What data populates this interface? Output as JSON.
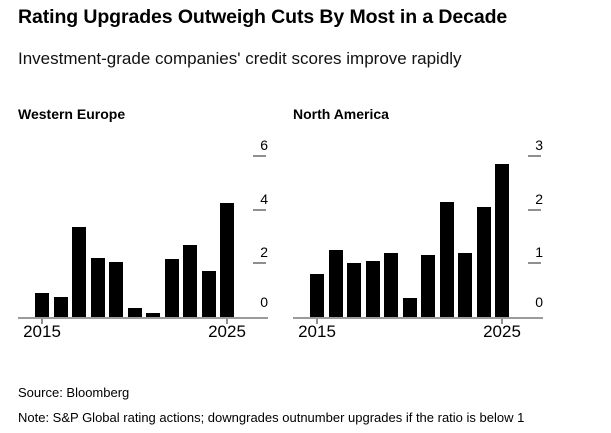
{
  "header": {
    "title": "Rating Upgrades Outweigh Cuts By Most in a Decade",
    "subtitle": "Investment-grade companies' credit scores improve rapidly"
  },
  "chart_data": [
    {
      "type": "bar",
      "title": "Western Europe",
      "x": [
        2015,
        2016,
        2017,
        2018,
        2019,
        2020,
        2021,
        2022,
        2023,
        2024,
        2025
      ],
      "values": [
        0.9,
        0.75,
        3.35,
        2.2,
        2.05,
        0.35,
        0.15,
        2.15,
        2.7,
        1.7,
        4.25
      ],
      "ylim": [
        0,
        6
      ],
      "yticks": [
        0,
        2,
        4,
        6
      ],
      "xticks": [
        2015,
        2025
      ],
      "xtick_labels": [
        "2015",
        "2025"
      ],
      "y_axis_side": "right",
      "grid": false
    },
    {
      "type": "bar",
      "title": "North America",
      "x": [
        2015,
        2016,
        2017,
        2018,
        2019,
        2020,
        2021,
        2022,
        2023,
        2024,
        2025
      ],
      "values": [
        0.8,
        1.25,
        1.0,
        1.05,
        1.2,
        0.35,
        1.15,
        2.15,
        1.2,
        2.05,
        2.85
      ],
      "ylim": [
        0,
        3
      ],
      "yticks": [
        0,
        1,
        2,
        3
      ],
      "xticks": [
        2015,
        2025
      ],
      "xtick_labels": [
        "2015",
        "2025"
      ],
      "y_axis_side": "right",
      "grid": false
    }
  ],
  "footer": {
    "source": "Source: Bloomberg",
    "note": "Note: S&P Global rating actions; downgrades outnumber upgrades if the ratio is below 1"
  },
  "colors": {
    "bar": "#000000",
    "axis_line": "#9b9b9b",
    "tick_dash": "#8f8f8f",
    "text": "#000000",
    "background": "#ffffff"
  }
}
